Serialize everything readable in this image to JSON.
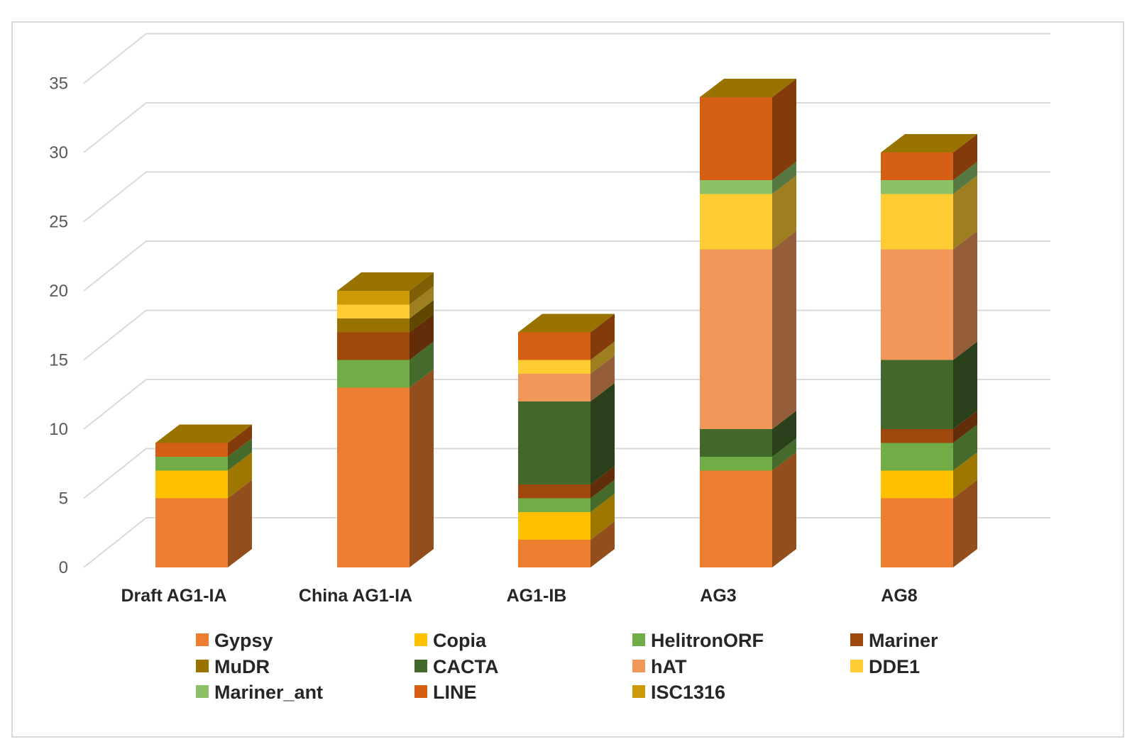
{
  "chart_data": {
    "type": "bar",
    "stacked": true,
    "three_d": true,
    "title": "",
    "xlabel": "",
    "ylabel": "",
    "ylim": [
      0,
      35
    ],
    "yticks": [
      0,
      5,
      10,
      15,
      20,
      25,
      30,
      35
    ],
    "grid": true,
    "legend_position": "bottom",
    "categories": [
      "Draft AG1-IA",
      "China AG1-IA",
      "AG1-IB",
      "AG3",
      "AG8"
    ],
    "series": [
      {
        "name": "Gypsy",
        "color": "#ED7D31",
        "values": [
          5,
          13,
          2,
          7,
          5
        ]
      },
      {
        "name": "Copia",
        "color": "#FFC000",
        "values": [
          2,
          0,
          2,
          0,
          2
        ]
      },
      {
        "name": "HelitronORF",
        "color": "#70AD47",
        "values": [
          1,
          2,
          1,
          1,
          2
        ]
      },
      {
        "name": "Mariner",
        "color": "#9E480E",
        "values": [
          0,
          2,
          1,
          0,
          1
        ]
      },
      {
        "name": "MuDR",
        "color": "#997300",
        "values": [
          0,
          1,
          0,
          0,
          0
        ]
      },
      {
        "name": "CACTA",
        "color": "#43682B",
        "values": [
          0,
          0,
          6,
          2,
          5
        ]
      },
      {
        "name": "hAT",
        "color": "#F1975A",
        "values": [
          0,
          0,
          2,
          13,
          8
        ]
      },
      {
        "name": "DDE1",
        "color": "#FFCD33",
        "values": [
          0,
          1,
          1,
          4,
          4
        ]
      },
      {
        "name": "Mariner_ant",
        "color": "#8CC168",
        "values": [
          0,
          0,
          0,
          1,
          1
        ]
      },
      {
        "name": "LINE",
        "color": "#D55F14",
        "values": [
          1,
          0,
          2,
          6,
          2
        ]
      },
      {
        "name": "ISC1316",
        "color": "#CC9A06",
        "values": [
          0,
          1,
          0,
          0,
          0
        ]
      }
    ]
  }
}
